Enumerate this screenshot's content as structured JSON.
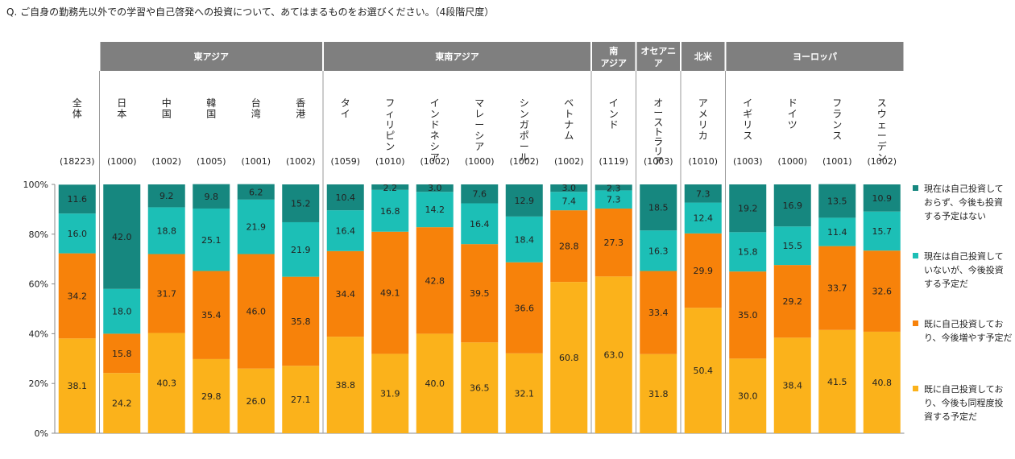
{
  "question": "Q. ご自身の勤務先以外での学習や自己啓発への投資について、あてはまるものをお選びください。（4段階尺度）",
  "chart_data": {
    "type": "bar",
    "stacked": true,
    "percent_stacked": true,
    "ylim": [
      0,
      100
    ],
    "yticks": [
      "0%",
      "20%",
      "40%",
      "60%",
      "80%",
      "100%"
    ],
    "categories": [
      "全体",
      "日本",
      "中国",
      "韓国",
      "台湾",
      "香港",
      "タイ",
      "フィリピン",
      "インドネシア",
      "マレーシア",
      "シンガポール",
      "ベトナム",
      "インド",
      "オーストラリア",
      "アメリカ",
      "イギリス",
      "ドイツ",
      "フランス",
      "スウェーデン"
    ],
    "sample_sizes": [
      "(18223)",
      "(1000)",
      "(1002)",
      "(1005)",
      "(1001)",
      "(1002)",
      "(1059)",
      "(1010)",
      "(1002)",
      "(1000)",
      "(1002)",
      "(1002)",
      "(1119)",
      "(1003)",
      "(1010)",
      "(1003)",
      "(1000)",
      "(1001)",
      "(1002)"
    ],
    "regions": [
      {
        "label": "東アジア",
        "start": 1,
        "end": 5
      },
      {
        "label": "東南アジア",
        "start": 6,
        "end": 11
      },
      {
        "label": "南アジア",
        "start": 12,
        "end": 12
      },
      {
        "label": "オセアニア",
        "start": 13,
        "end": 13
      },
      {
        "label": "北米",
        "start": 14,
        "end": 14
      },
      {
        "label": "ヨーロッパ",
        "start": 15,
        "end": 18
      }
    ],
    "series": [
      {
        "name": "既に自己投資しており、今後も同程度投資する予定だ",
        "color": "#FBB21B",
        "values": [
          38.1,
          24.2,
          40.3,
          29.8,
          26.0,
          27.1,
          38.8,
          31.9,
          40.0,
          36.5,
          32.1,
          60.8,
          63.0,
          31.8,
          50.4,
          30.0,
          38.4,
          41.5,
          40.8
        ]
      },
      {
        "name": "既に自己投資しており、今後増やす予定だ",
        "color": "#F7820A",
        "values": [
          34.2,
          15.8,
          31.7,
          35.4,
          46.0,
          35.8,
          34.4,
          49.1,
          42.8,
          39.5,
          36.6,
          28.8,
          27.3,
          33.4,
          29.9,
          35.0,
          29.2,
          33.7,
          32.6
        ]
      },
      {
        "name": "現在は自己投資していないが、今後投資する予定だ",
        "color": "#1CBFB6",
        "values": [
          16.0,
          18.0,
          18.8,
          25.1,
          21.9,
          21.9,
          16.4,
          16.8,
          14.2,
          16.4,
          18.4,
          7.4,
          7.3,
          16.3,
          12.4,
          15.8,
          15.5,
          11.4,
          15.7
        ]
      },
      {
        "name": "現在は自己投資しておらず、今後も投資する予定はない",
        "color": "#16877F",
        "values": [
          11.6,
          42.0,
          9.2,
          9.8,
          6.2,
          15.2,
          10.4,
          2.2,
          3.0,
          7.6,
          12.9,
          3.0,
          2.3,
          18.5,
          7.3,
          19.2,
          16.9,
          13.5,
          10.9
        ]
      }
    ]
  }
}
